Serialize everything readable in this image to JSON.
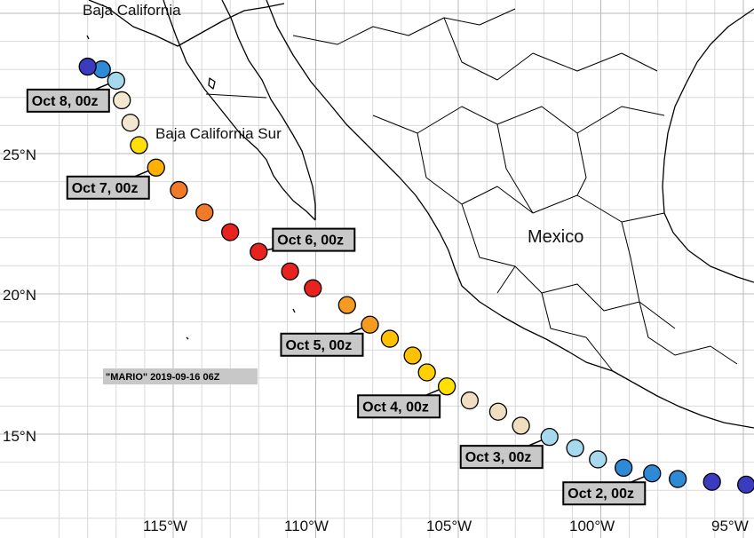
{
  "storm_label": "\"MARIO\" 2019-09-16 06Z",
  "region_labels": {
    "baja_california": "Baja California",
    "baja_california_sur": "Baja California Sur",
    "mexico": "Mexico"
  },
  "lat_ticks": [
    "25°N",
    "20°N",
    "15°N"
  ],
  "lon_ticks": [
    "115°W",
    "110°W",
    "105°W",
    "100°W",
    "95°W"
  ],
  "lat_values": [
    25,
    20,
    15
  ],
  "lon_values": [
    -115,
    -110,
    -105,
    -100,
    -95
  ],
  "track": [
    {
      "lat": 13.2,
      "lon": -94.9,
      "color": "#3b3bc0"
    },
    {
      "lat": 13.3,
      "lon": -96.1,
      "color": "#3b3bc0"
    },
    {
      "lat": 13.4,
      "lon": -97.3,
      "color": "#2e8ad6"
    },
    {
      "lat": 13.6,
      "lon": -98.2,
      "color": "#2e8ad6"
    },
    {
      "lat": 13.8,
      "lon": -99.2,
      "color": "#2e8ad6"
    },
    {
      "lat": 14.1,
      "lon": -100.1,
      "color": "#a6d8ee"
    },
    {
      "lat": 14.5,
      "lon": -100.9,
      "color": "#a6d8ee"
    },
    {
      "lat": 14.9,
      "lon": -101.8,
      "color": "#a6d8ee"
    },
    {
      "lat": 15.3,
      "lon": -102.8,
      "color": "#efdfc0"
    },
    {
      "lat": 15.8,
      "lon": -103.6,
      "color": "#efdfc0"
    },
    {
      "lat": 16.2,
      "lon": -104.6,
      "color": "#efdfc0"
    },
    {
      "lat": 16.7,
      "lon": -105.4,
      "color": "#ffe000"
    },
    {
      "lat": 17.2,
      "lon": -106.1,
      "color": "#ffd000"
    },
    {
      "lat": 17.8,
      "lon": -106.6,
      "color": "#ffc000"
    },
    {
      "lat": 18.4,
      "lon": -107.4,
      "color": "#ffc000"
    },
    {
      "lat": 18.9,
      "lon": -108.1,
      "color": "#f39a20"
    },
    {
      "lat": 19.6,
      "lon": -108.9,
      "color": "#f39a20"
    },
    {
      "lat": 20.2,
      "lon": -110.1,
      "color": "#e8221f"
    },
    {
      "lat": 20.8,
      "lon": -110.9,
      "color": "#e8221f"
    },
    {
      "lat": 21.5,
      "lon": -112.0,
      "color": "#e8221f"
    },
    {
      "lat": 22.2,
      "lon": -113.0,
      "color": "#e8221f"
    },
    {
      "lat": 22.9,
      "lon": -113.9,
      "color": "#f07a28"
    },
    {
      "lat": 23.7,
      "lon": -114.8,
      "color": "#f07a28"
    },
    {
      "lat": 24.5,
      "lon": -115.6,
      "color": "#ffb000"
    },
    {
      "lat": 25.3,
      "lon": -116.2,
      "color": "#ffe000"
    },
    {
      "lat": 26.1,
      "lon": -116.5,
      "color": "#f3e8cf"
    },
    {
      "lat": 26.9,
      "lon": -116.8,
      "color": "#f3e8cf"
    },
    {
      "lat": 27.6,
      "lon": -117.0,
      "color": "#a6d8ee"
    },
    {
      "lat": 28.0,
      "lon": -117.5,
      "color": "#2e8ad6"
    },
    {
      "lat": 28.1,
      "lon": -118.0,
      "color": "#3b3bc0"
    }
  ],
  "date_labels": [
    {
      "text": "Oct 8, 00z",
      "track_index": 27
    },
    {
      "text": "Oct 7, 00z",
      "track_index": 23
    },
    {
      "text": "Oct 6, 00z",
      "track_index": 19
    },
    {
      "text": "Oct 5, 00z",
      "track_index": 15
    },
    {
      "text": "Oct 4, 00z",
      "track_index": 11
    },
    {
      "text": "Oct 3, 00z",
      "track_index": 7
    },
    {
      "text": "Oct 2, 00z",
      "track_index": 3
    }
  ]
}
